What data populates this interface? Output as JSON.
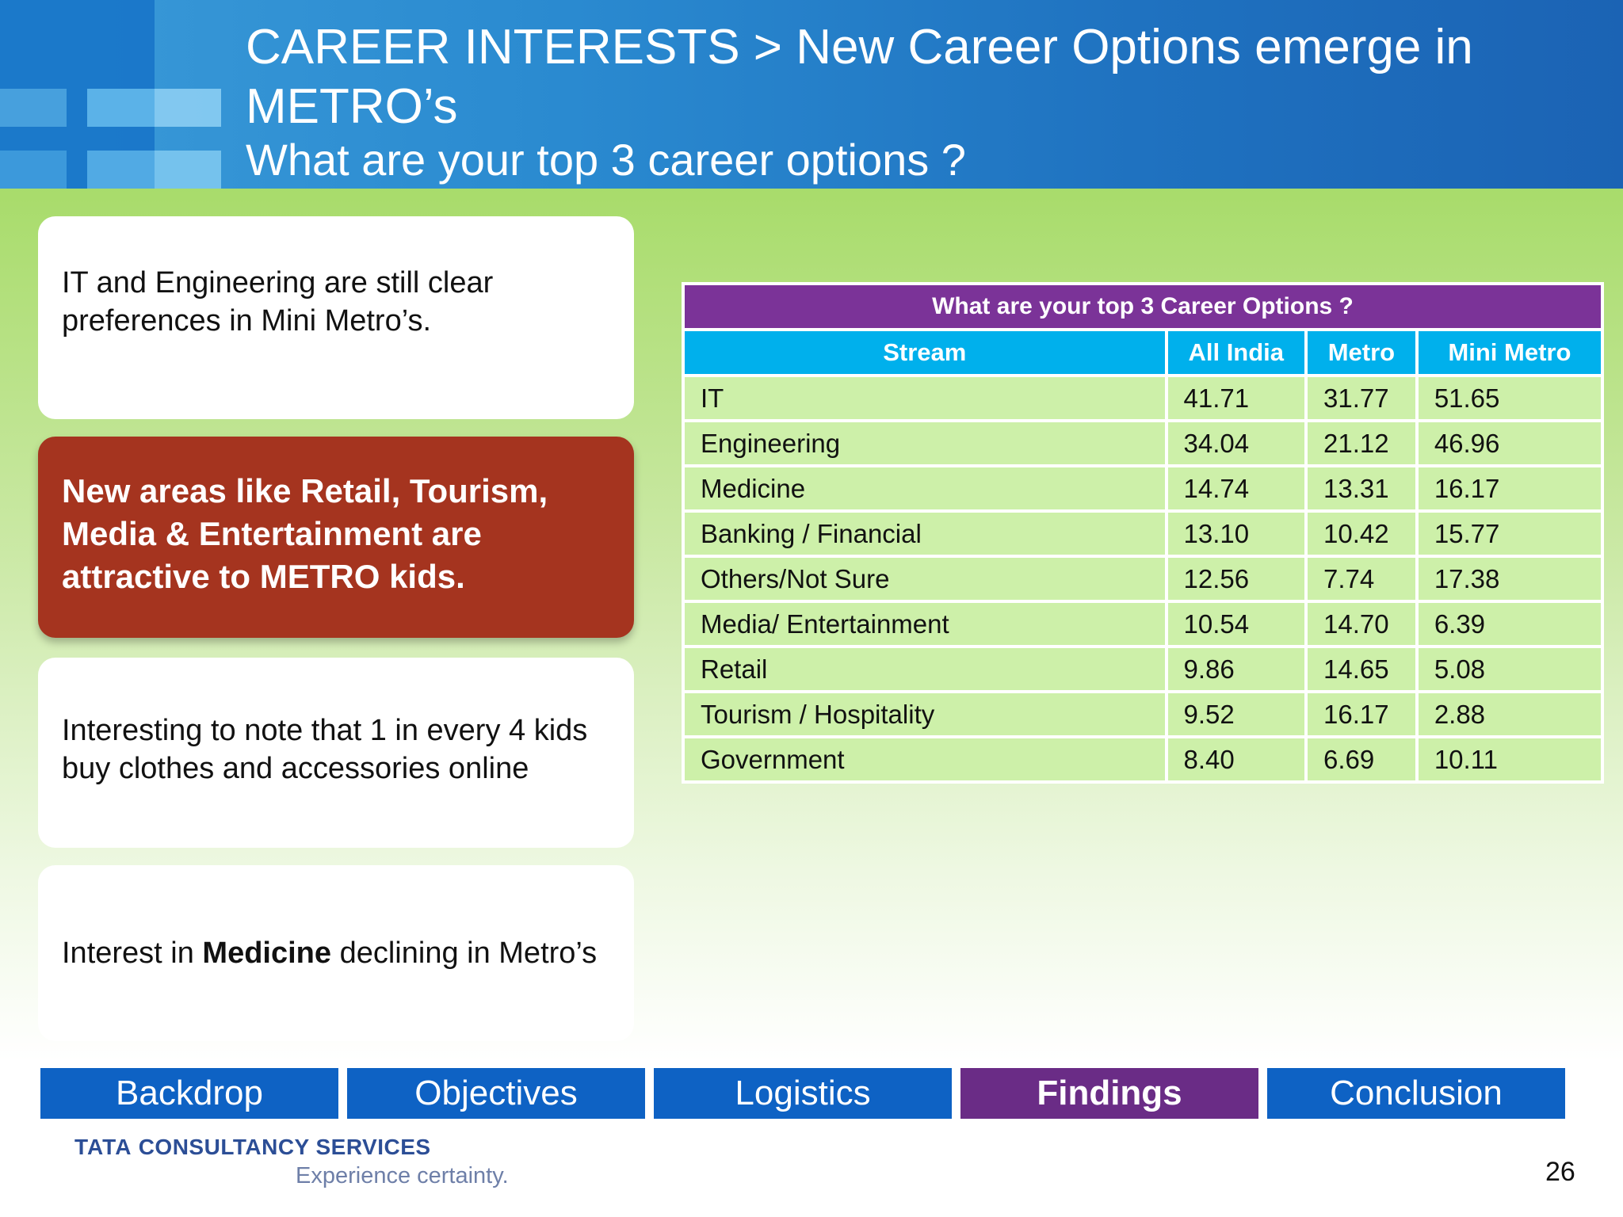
{
  "header": {
    "title": "CAREER INTERESTS > New Career Options emerge in METRO’s",
    "subtitle": "What are your  top 3 career options ?"
  },
  "cards": {
    "card1": "IT and Engineering are still clear preferences in Mini Metro’s.",
    "card2": "New areas like Retail, Tourism, Media & Entertainment are attractive to METRO kids.",
    "card3": "Interesting to note that 1 in every 4 kids buy clothes and accessories online",
    "card4_prefix": "Interest in ",
    "card4_bold": "Medicine",
    "card4_suffix": " declining  in Metro’s"
  },
  "table": {
    "title": "What are your top 3 Career Options ?",
    "headers": [
      "Stream",
      "All India",
      "Metro",
      "Mini Metro"
    ],
    "rows": [
      [
        "IT",
        "41.71",
        "31.77",
        "51.65"
      ],
      [
        "Engineering",
        "34.04",
        "21.12",
        "46.96"
      ],
      [
        "Medicine",
        "14.74",
        "13.31",
        "16.17"
      ],
      [
        "Banking / Financial",
        "13.10",
        "10.42",
        "15.77"
      ],
      [
        "Others/Not Sure",
        "12.56",
        "7.74",
        "17.38"
      ],
      [
        "Media/ Entertainment",
        "10.54",
        "14.70",
        "6.39"
      ],
      [
        "Retail",
        "9.86",
        "14.65",
        "5.08"
      ],
      [
        "Tourism / Hospitality",
        "9.52",
        "16.17",
        "2.88"
      ],
      [
        "Government",
        "8.40",
        "6.69",
        "10.11"
      ]
    ]
  },
  "nav": [
    "Backdrop",
    "Objectives",
    "Logistics",
    "Findings",
    "Conclusion"
  ],
  "nav_active": "Findings",
  "footer": {
    "logo_brand": "TATA",
    "logo_company": "CONSULTANCY SERVICES",
    "tagline": "Experience certainty.",
    "page_number": "26"
  },
  "colors": {
    "header_blue": "#1f72c0",
    "table_title_purple": "#7b3398",
    "table_header_cyan": "#00b0ec",
    "table_row_green": "#cdf0a9",
    "highlight_card_red": "#a5341f",
    "nav_blue": "#0e62c4",
    "nav_active_purple": "#6a2c86"
  }
}
